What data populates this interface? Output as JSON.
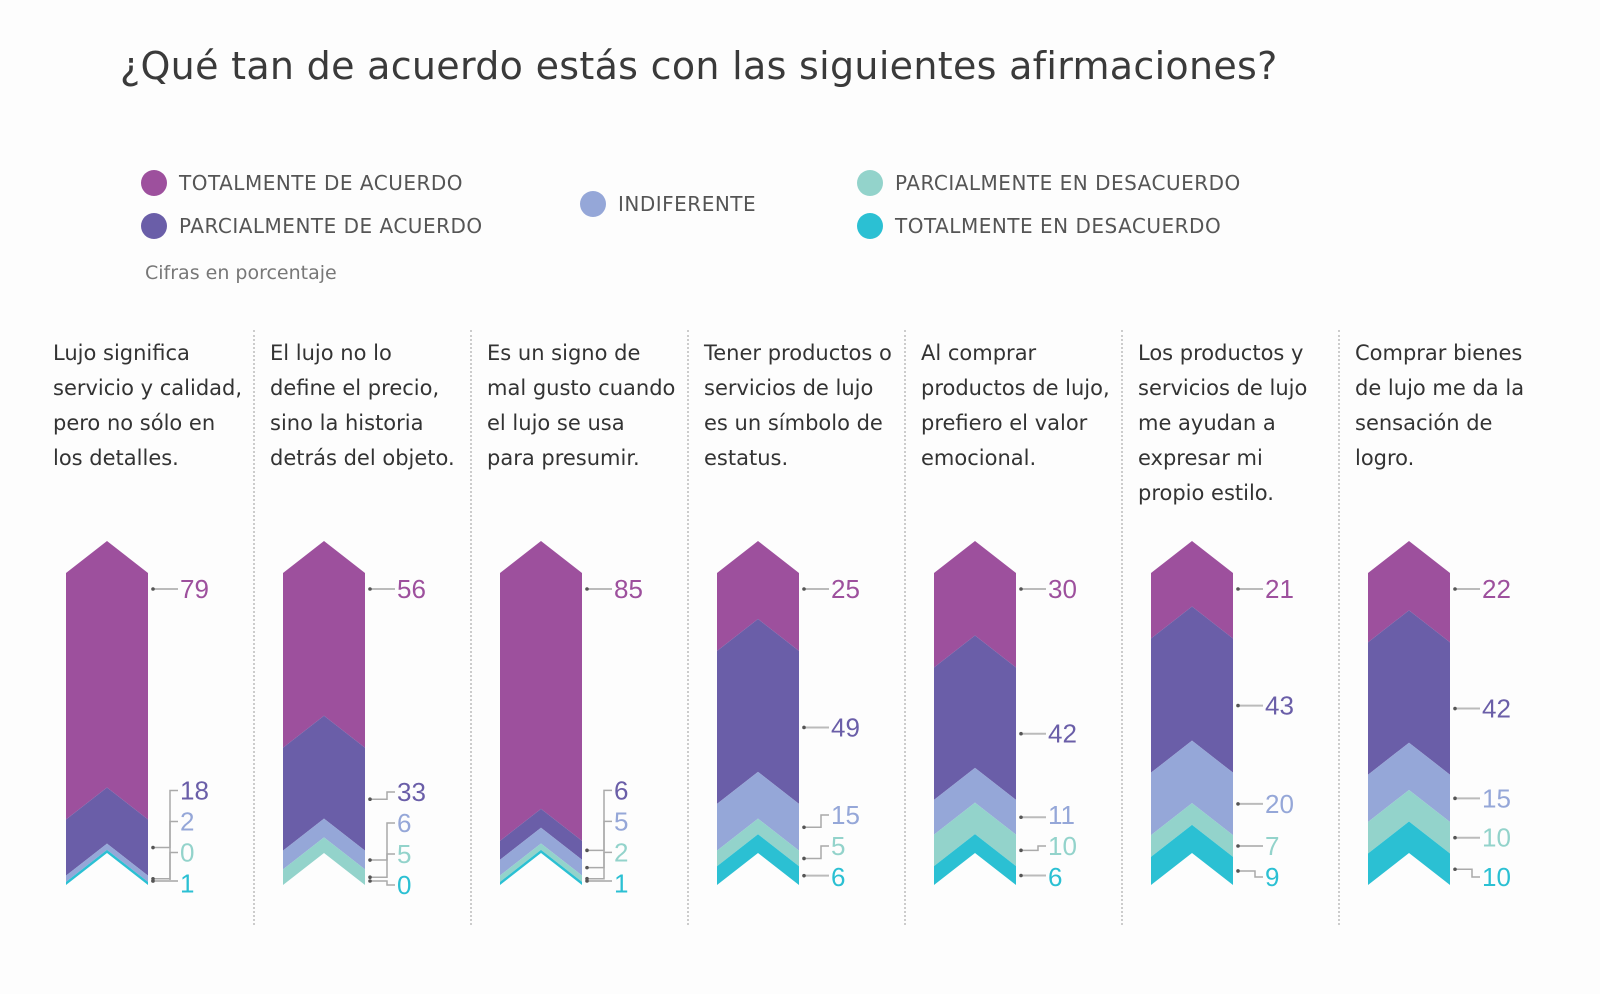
{
  "title": "¿Qué tan de acuerdo estás con las siguientes afirmaciones?",
  "note": "Cifras en porcentaje",
  "chart_data": {
    "type": "stacked-bar",
    "title": "¿Qué tan de acuerdo estás con las siguientes afirmaciones?",
    "unit": "Cifras en porcentaje",
    "legend_placement": "top",
    "series": [
      {
        "name": "TOTALMENTE DE ACUERDO",
        "color": "#9d509d",
        "values": [
          79,
          56,
          85,
          25,
          30,
          21,
          22
        ]
      },
      {
        "name": "PARCIALMENTE DE ACUERDO",
        "color": "#6a5ea8",
        "values": [
          18,
          33,
          6,
          49,
          42,
          43,
          42
        ]
      },
      {
        "name": "INDIFERENTE",
        "color": "#95a7d8",
        "values": [
          2,
          6,
          5,
          15,
          11,
          20,
          15
        ]
      },
      {
        "name": "PARCIALMENTE EN DESACUERDO",
        "color": "#93d3cb",
        "values": [
          0,
          5,
          2,
          5,
          10,
          7,
          10
        ]
      },
      {
        "name": "TOTALMENTE EN DESACUERDO",
        "color": "#2bc0d3",
        "values": [
          1,
          0,
          1,
          6,
          6,
          9,
          10
        ]
      }
    ],
    "categories": [
      "Lujo significa servicio y calidad, pero no sólo en los detalles.",
      "El lujo no lo define el precio, sino la historia detrás del objeto.",
      "Es un signo de mal gusto cuando el lujo se usa para presumir.",
      "Tener productos o servicios de lujo es un símbolo de estatus.",
      "Al comprar productos de lujo, prefiero el valor emocional.",
      "Los productos y servicios de lujo me ayudan a expresar mi propio estilo.",
      "Comprar bienes de lujo me da la sensación de logro."
    ]
  }
}
